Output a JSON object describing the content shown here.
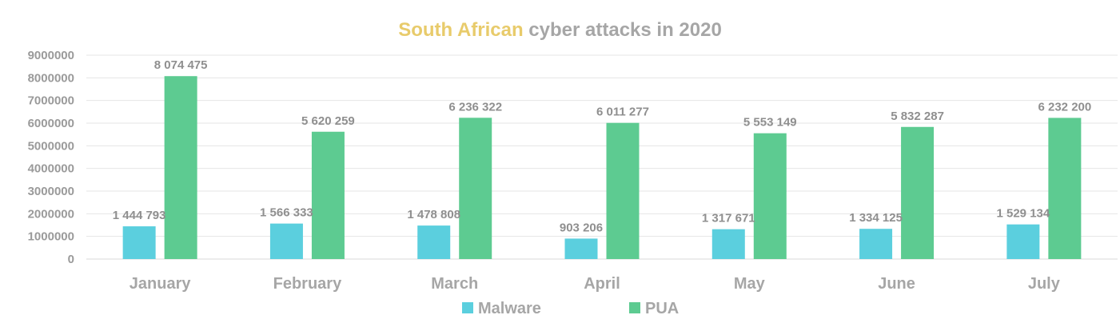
{
  "chart_data": {
    "type": "bar",
    "title_highlight": "South African",
    "title_rest": " cyber attacks in 2020",
    "categories": [
      "January",
      "February",
      "March",
      "April",
      "May",
      "June",
      "July"
    ],
    "series": [
      {
        "name": "Malware",
        "color": "#5bcfde",
        "values": [
          1444793,
          1566333,
          1478808,
          903206,
          1317671,
          1334125,
          1529134
        ],
        "labels": [
          "1 444 793",
          "1 566 333",
          "1 478 808",
          "903 206",
          "1 317 671",
          "1 334 125",
          "1 529 134"
        ]
      },
      {
        "name": "PUA",
        "color": "#5dcb91",
        "values": [
          8074475,
          5620259,
          6236322,
          6011277,
          5553149,
          5832287,
          6232200
        ],
        "labels": [
          "8 074 475",
          "5 620 259",
          "6 236 322",
          "6 011 277",
          "5 553 149",
          "5 832 287",
          "6 232 200"
        ]
      }
    ],
    "yticks": [
      "0",
      "1000000",
      "2000000",
      "3000000",
      "4000000",
      "5000000",
      "6000000",
      "7000000",
      "8000000",
      "9000000"
    ],
    "ylim": [
      0,
      9000000
    ],
    "grid": true,
    "legend_position": "bottom",
    "colors": {
      "title_highlight": "#e8cb6b",
      "text": "#a6a6a6",
      "grid": "#e6e6e6"
    }
  }
}
